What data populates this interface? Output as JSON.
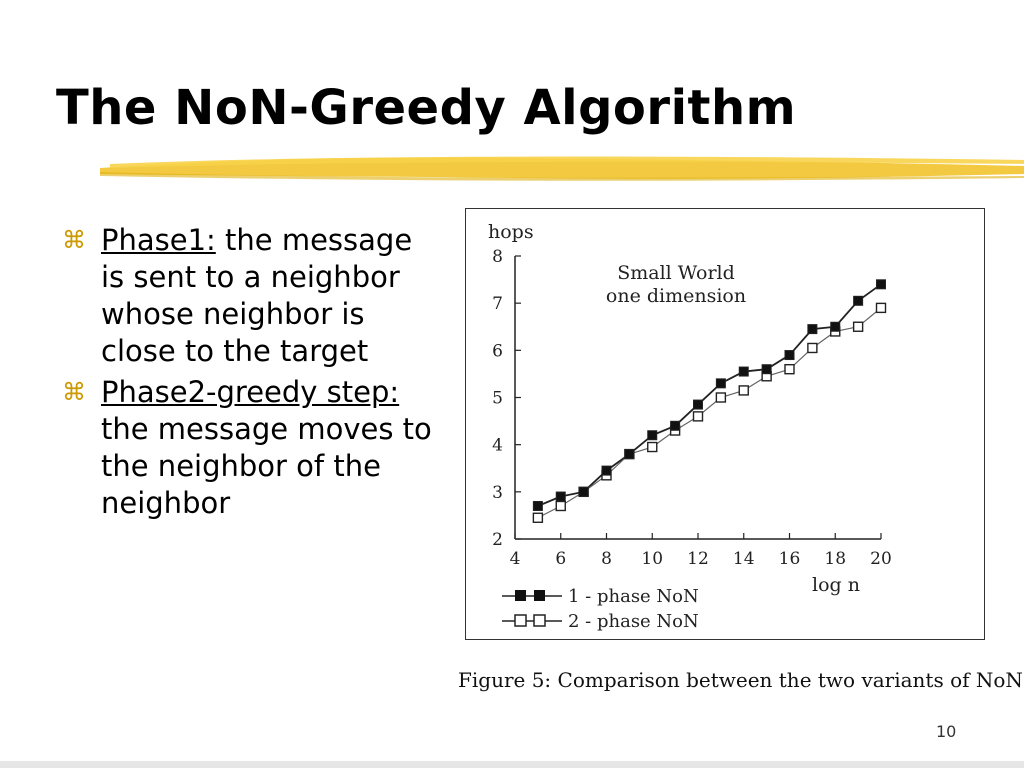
{
  "slide": {
    "title": "The NoN-Greedy Algorithm",
    "page_number": "10",
    "accent_color": "#f0c020",
    "bullet_glyph_color": "#cc9900"
  },
  "bullets": [
    {
      "glyph": "⌘",
      "label": "Phase1:",
      "text": " the message is sent to a neighbor whose neighbor is close to the target"
    },
    {
      "glyph": "⌘",
      "label": "Phase2-greedy step:",
      "text": " the message moves to the neighbor of the neighbor"
    }
  ],
  "figure": {
    "caption": "Figure 5: Comparison between the two variants of NoN"
  },
  "chart_data": {
    "type": "line",
    "annotation": [
      "Small World",
      "one dimension"
    ],
    "xlabel": "log n",
    "ylabel": "hops",
    "xlim": [
      4,
      20
    ],
    "ylim": [
      2,
      8
    ],
    "xticks": [
      4,
      6,
      8,
      10,
      12,
      14,
      16,
      18,
      20
    ],
    "yticks": [
      2,
      3,
      4,
      5,
      6,
      7,
      8
    ],
    "grid": false,
    "legend_placement": "bottom-left",
    "x": [
      5,
      6,
      7,
      8,
      9,
      10,
      11,
      12,
      13,
      14,
      15,
      16,
      17,
      18,
      19,
      20
    ],
    "series": [
      {
        "name": "1 - phase NoN",
        "marker": "filled-square",
        "values": [
          2.7,
          2.9,
          3.0,
          3.45,
          3.8,
          4.2,
          4.4,
          4.85,
          5.3,
          5.55,
          5.6,
          5.9,
          6.45,
          6.5,
          7.05,
          7.4
        ]
      },
      {
        "name": "2 - phase NoN",
        "marker": "open-square",
        "values": [
          2.45,
          2.7,
          3.0,
          3.35,
          3.8,
          3.95,
          4.3,
          4.6,
          5.0,
          5.15,
          5.45,
          5.6,
          6.05,
          6.4,
          6.5,
          6.9
        ]
      }
    ]
  }
}
